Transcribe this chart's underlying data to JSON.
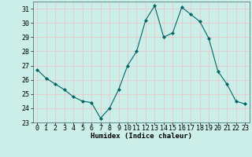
{
  "x": [
    0,
    1,
    2,
    3,
    4,
    5,
    6,
    7,
    8,
    9,
    10,
    11,
    12,
    13,
    14,
    15,
    16,
    17,
    18,
    19,
    20,
    21,
    22,
    23
  ],
  "y": [
    26.7,
    26.1,
    25.7,
    25.3,
    24.8,
    24.5,
    24.4,
    23.3,
    24.0,
    25.3,
    27.0,
    28.0,
    30.2,
    31.2,
    29.0,
    29.3,
    31.1,
    30.6,
    30.1,
    28.9,
    26.6,
    25.7,
    24.5,
    24.3
  ],
  "xlabel": "Humidex (Indice chaleur)",
  "xlim": [
    -0.5,
    23.5
  ],
  "ylim": [
    23,
    31.5
  ],
  "yticks": [
    23,
    24,
    25,
    26,
    27,
    28,
    29,
    30,
    31
  ],
  "xticks": [
    0,
    1,
    2,
    3,
    4,
    5,
    6,
    7,
    8,
    9,
    10,
    11,
    12,
    13,
    14,
    15,
    16,
    17,
    18,
    19,
    20,
    21,
    22,
    23
  ],
  "line_color": "#006666",
  "marker": "D",
  "marker_size": 2.0,
  "bg_color": "#cceee8",
  "grid_color": "#e8c8c8",
  "label_fontsize": 6.5,
  "tick_fontsize": 6.0
}
